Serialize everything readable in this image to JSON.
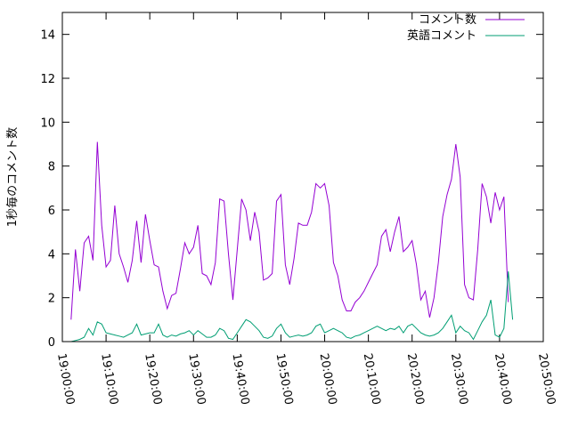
{
  "chart_data": {
    "type": "line",
    "xlabel": "",
    "ylabel": "1秒毎のコメント数",
    "ylim": [
      0,
      15
    ],
    "yticks": [
      0,
      2,
      4,
      6,
      8,
      10,
      12,
      14
    ],
    "xlim": [
      "19:00:00",
      "20:50:00"
    ],
    "xticks": [
      "19:00:00",
      "19:10:00",
      "19:20:00",
      "19:30:00",
      "19:40:00",
      "19:50:00",
      "20:00:00",
      "20:10:00",
      "20:20:00",
      "20:30:00",
      "20:40:00",
      "20:50:00"
    ],
    "grid": false,
    "legend_position": "top-right",
    "series": [
      {
        "name": "コメント数",
        "color": "#9400d3",
        "points": [
          [
            "19:02:00",
            1.0
          ],
          [
            "19:03:00",
            4.2
          ],
          [
            "19:04:00",
            2.3
          ],
          [
            "19:05:00",
            4.5
          ],
          [
            "19:06:00",
            4.8
          ],
          [
            "19:07:00",
            3.7
          ],
          [
            "19:08:00",
            9.1
          ],
          [
            "19:09:00",
            5.3
          ],
          [
            "19:10:00",
            3.4
          ],
          [
            "19:11:00",
            3.7
          ],
          [
            "19:12:00",
            6.2
          ],
          [
            "19:13:00",
            4.0
          ],
          [
            "19:14:00",
            3.4
          ],
          [
            "19:15:00",
            2.7
          ],
          [
            "19:16:00",
            3.7
          ],
          [
            "19:17:00",
            5.5
          ],
          [
            "19:18:00",
            3.6
          ],
          [
            "19:19:00",
            5.8
          ],
          [
            "19:20:00",
            4.6
          ],
          [
            "19:21:00",
            3.5
          ],
          [
            "19:22:00",
            3.4
          ],
          [
            "19:23:00",
            2.3
          ],
          [
            "19:24:00",
            1.5
          ],
          [
            "19:25:00",
            2.1
          ],
          [
            "19:26:00",
            2.2
          ],
          [
            "19:27:00",
            3.3
          ],
          [
            "19:28:00",
            4.5
          ],
          [
            "19:29:00",
            4.0
          ],
          [
            "19:30:00",
            4.3
          ],
          [
            "19:31:00",
            5.3
          ],
          [
            "19:32:00",
            3.1
          ],
          [
            "19:33:00",
            3.0
          ],
          [
            "19:34:00",
            2.6
          ],
          [
            "19:35:00",
            3.6
          ],
          [
            "19:36:00",
            6.5
          ],
          [
            "19:37:00",
            6.4
          ],
          [
            "19:38:00",
            4.0
          ],
          [
            "19:39:00",
            1.9
          ],
          [
            "19:40:00",
            4.2
          ],
          [
            "19:41:00",
            6.5
          ],
          [
            "19:42:00",
            6.0
          ],
          [
            "19:43:00",
            4.6
          ],
          [
            "19:44:00",
            5.9
          ],
          [
            "19:45:00",
            5.0
          ],
          [
            "19:46:00",
            2.8
          ],
          [
            "19:47:00",
            2.9
          ],
          [
            "19:48:00",
            3.1
          ],
          [
            "19:49:00",
            6.4
          ],
          [
            "19:50:00",
            6.7
          ],
          [
            "19:51:00",
            3.5
          ],
          [
            "19:52:00",
            2.6
          ],
          [
            "19:53:00",
            3.8
          ],
          [
            "19:54:00",
            5.4
          ],
          [
            "19:55:00",
            5.3
          ],
          [
            "19:56:00",
            5.3
          ],
          [
            "19:57:00",
            5.9
          ],
          [
            "19:58:00",
            7.2
          ],
          [
            "19:59:00",
            7.0
          ],
          [
            "20:00:00",
            7.2
          ],
          [
            "20:01:00",
            6.2
          ],
          [
            "20:02:00",
            3.6
          ],
          [
            "20:03:00",
            3.0
          ],
          [
            "20:04:00",
            1.9
          ],
          [
            "20:05:00",
            1.4
          ],
          [
            "20:06:00",
            1.4
          ],
          [
            "20:07:00",
            1.8
          ],
          [
            "20:08:00",
            2.0
          ],
          [
            "20:09:00",
            2.3
          ],
          [
            "20:10:00",
            2.7
          ],
          [
            "20:11:00",
            3.1
          ],
          [
            "20:12:00",
            3.5
          ],
          [
            "20:13:00",
            4.8
          ],
          [
            "20:14:00",
            5.1
          ],
          [
            "20:15:00",
            4.1
          ],
          [
            "20:16:00",
            5.0
          ],
          [
            "20:17:00",
            5.7
          ],
          [
            "20:18:00",
            4.1
          ],
          [
            "20:19:00",
            4.3
          ],
          [
            "20:20:00",
            4.6
          ],
          [
            "20:21:00",
            3.5
          ],
          [
            "20:22:00",
            1.9
          ],
          [
            "20:23:00",
            2.3
          ],
          [
            "20:24:00",
            1.1
          ],
          [
            "20:25:00",
            2.0
          ],
          [
            "20:26:00",
            3.6
          ],
          [
            "20:27:00",
            5.7
          ],
          [
            "20:28:00",
            6.7
          ],
          [
            "20:29:00",
            7.4
          ],
          [
            "20:30:00",
            9.0
          ],
          [
            "20:31:00",
            7.5
          ],
          [
            "20:32:00",
            2.6
          ],
          [
            "20:33:00",
            2.0
          ],
          [
            "20:34:00",
            1.9
          ],
          [
            "20:35:00",
            4.2
          ],
          [
            "20:36:00",
            7.2
          ],
          [
            "20:37:00",
            6.6
          ],
          [
            "20:38:00",
            5.4
          ],
          [
            "20:39:00",
            6.8
          ],
          [
            "20:40:00",
            6.0
          ],
          [
            "20:41:00",
            6.6
          ],
          [
            "20:42:00",
            1.8
          ]
        ]
      },
      {
        "name": "英語コメント",
        "color": "#009e73",
        "points": [
          [
            "19:02:00",
            0.0
          ],
          [
            "19:03:00",
            0.05
          ],
          [
            "19:04:00",
            0.1
          ],
          [
            "19:05:00",
            0.2
          ],
          [
            "19:06:00",
            0.6
          ],
          [
            "19:07:00",
            0.3
          ],
          [
            "19:08:00",
            0.9
          ],
          [
            "19:09:00",
            0.8
          ],
          [
            "19:10:00",
            0.4
          ],
          [
            "19:11:00",
            0.35
          ],
          [
            "19:12:00",
            0.3
          ],
          [
            "19:13:00",
            0.25
          ],
          [
            "19:14:00",
            0.2
          ],
          [
            "19:15:00",
            0.3
          ],
          [
            "19:16:00",
            0.4
          ],
          [
            "19:17:00",
            0.8
          ],
          [
            "19:18:00",
            0.3
          ],
          [
            "19:19:00",
            0.35
          ],
          [
            "19:20:00",
            0.4
          ],
          [
            "19:21:00",
            0.4
          ],
          [
            "19:22:00",
            0.8
          ],
          [
            "19:23:00",
            0.3
          ],
          [
            "19:24:00",
            0.2
          ],
          [
            "19:25:00",
            0.3
          ],
          [
            "19:26:00",
            0.25
          ],
          [
            "19:27:00",
            0.35
          ],
          [
            "19:28:00",
            0.4
          ],
          [
            "19:29:00",
            0.5
          ],
          [
            "19:30:00",
            0.3
          ],
          [
            "19:31:00",
            0.5
          ],
          [
            "19:32:00",
            0.35
          ],
          [
            "19:33:00",
            0.2
          ],
          [
            "19:34:00",
            0.2
          ],
          [
            "19:35:00",
            0.3
          ],
          [
            "19:36:00",
            0.6
          ],
          [
            "19:37:00",
            0.5
          ],
          [
            "19:38:00",
            0.15
          ],
          [
            "19:39:00",
            0.1
          ],
          [
            "19:40:00",
            0.4
          ],
          [
            "19:41:00",
            0.7
          ],
          [
            "19:42:00",
            1.0
          ],
          [
            "19:43:00",
            0.9
          ],
          [
            "19:44:00",
            0.7
          ],
          [
            "19:45:00",
            0.5
          ],
          [
            "19:46:00",
            0.2
          ],
          [
            "19:47:00",
            0.15
          ],
          [
            "19:48:00",
            0.25
          ],
          [
            "19:49:00",
            0.6
          ],
          [
            "19:50:00",
            0.8
          ],
          [
            "19:51:00",
            0.4
          ],
          [
            "19:52:00",
            0.2
          ],
          [
            "19:53:00",
            0.25
          ],
          [
            "19:54:00",
            0.3
          ],
          [
            "19:55:00",
            0.25
          ],
          [
            "19:56:00",
            0.3
          ],
          [
            "19:57:00",
            0.4
          ],
          [
            "19:58:00",
            0.7
          ],
          [
            "19:59:00",
            0.8
          ],
          [
            "20:00:00",
            0.4
          ],
          [
            "20:01:00",
            0.5
          ],
          [
            "20:02:00",
            0.6
          ],
          [
            "20:03:00",
            0.5
          ],
          [
            "20:04:00",
            0.4
          ],
          [
            "20:05:00",
            0.2
          ],
          [
            "20:06:00",
            0.15
          ],
          [
            "20:07:00",
            0.25
          ],
          [
            "20:08:00",
            0.3
          ],
          [
            "20:09:00",
            0.4
          ],
          [
            "20:10:00",
            0.5
          ],
          [
            "20:11:00",
            0.6
          ],
          [
            "20:12:00",
            0.7
          ],
          [
            "20:13:00",
            0.6
          ],
          [
            "20:14:00",
            0.5
          ],
          [
            "20:15:00",
            0.6
          ],
          [
            "20:16:00",
            0.55
          ],
          [
            "20:17:00",
            0.7
          ],
          [
            "20:18:00",
            0.4
          ],
          [
            "20:19:00",
            0.7
          ],
          [
            "20:20:00",
            0.8
          ],
          [
            "20:21:00",
            0.6
          ],
          [
            "20:22:00",
            0.4
          ],
          [
            "20:23:00",
            0.3
          ],
          [
            "20:24:00",
            0.25
          ],
          [
            "20:25:00",
            0.3
          ],
          [
            "20:26:00",
            0.4
          ],
          [
            "20:27:00",
            0.6
          ],
          [
            "20:28:00",
            0.9
          ],
          [
            "20:29:00",
            1.2
          ],
          [
            "20:30:00",
            0.4
          ],
          [
            "20:31:00",
            0.7
          ],
          [
            "20:32:00",
            0.5
          ],
          [
            "20:33:00",
            0.4
          ],
          [
            "20:34:00",
            0.1
          ],
          [
            "20:35:00",
            0.5
          ],
          [
            "20:36:00",
            0.9
          ],
          [
            "20:37:00",
            1.2
          ],
          [
            "20:38:00",
            1.9
          ],
          [
            "20:39:00",
            0.3
          ],
          [
            "20:40:00",
            0.2
          ],
          [
            "20:41:00",
            0.6
          ],
          [
            "20:42:00",
            3.2
          ],
          [
            "20:43:00",
            1.0
          ]
        ]
      }
    ]
  }
}
